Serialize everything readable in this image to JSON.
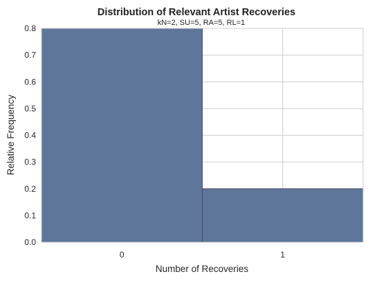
{
  "chart_data": {
    "type": "bar",
    "title": "Distribution of Relevant Artist Recoveries",
    "subtitle": "kN=2, SU=5, RA=5, RL=1",
    "xlabel": "Number of Recoveries",
    "ylabel": "Relative Frequency",
    "categories": [
      "0",
      "1"
    ],
    "values": [
      0.8,
      0.2
    ],
    "ylim": [
      0,
      0.8
    ],
    "yticks": [
      "0.0",
      "0.1",
      "0.2",
      "0.3",
      "0.4",
      "0.5",
      "0.6",
      "0.7",
      "0.8"
    ],
    "grid": true,
    "bar_color": "#5f769b",
    "grid_color": "#cccccc"
  }
}
